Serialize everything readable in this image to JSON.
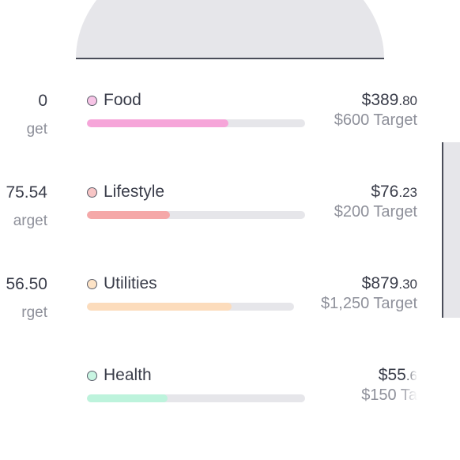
{
  "background": {
    "accent": "#e6e6ea",
    "line": "#4a4d59"
  },
  "left_partial": [
    {
      "amount": "0",
      "target": "get"
    },
    {
      "amount": "75.54",
      "target": "arget"
    },
    {
      "amount": "56.50",
      "target": "rget"
    }
  ],
  "categories": [
    {
      "name": "Food",
      "amount_main": "$389",
      "amount_cents": ".80",
      "target": "$600 Target",
      "color": "#f6a5d9",
      "dot_color": "#f7c4e6",
      "progress": 0.65
    },
    {
      "name": "Lifestyle",
      "amount_main": "$76",
      "amount_cents": ".23",
      "target": "$200 Target",
      "color": "#f5a8a8",
      "dot_color": "#f7c5c5",
      "progress": 0.38
    },
    {
      "name": "Utilities",
      "amount_main": "$879",
      "amount_cents": ".30",
      "target": "$1,250 Target",
      "color": "#fcdcbc",
      "dot_color": "#fde3c6",
      "progress": 0.7
    },
    {
      "name": "Health",
      "amount_main": "$55",
      "amount_cents": ".6",
      "target": "$150 Ta",
      "color": "#bdf3dc",
      "dot_color": "#c8f5e2",
      "progress": 0.37
    }
  ]
}
